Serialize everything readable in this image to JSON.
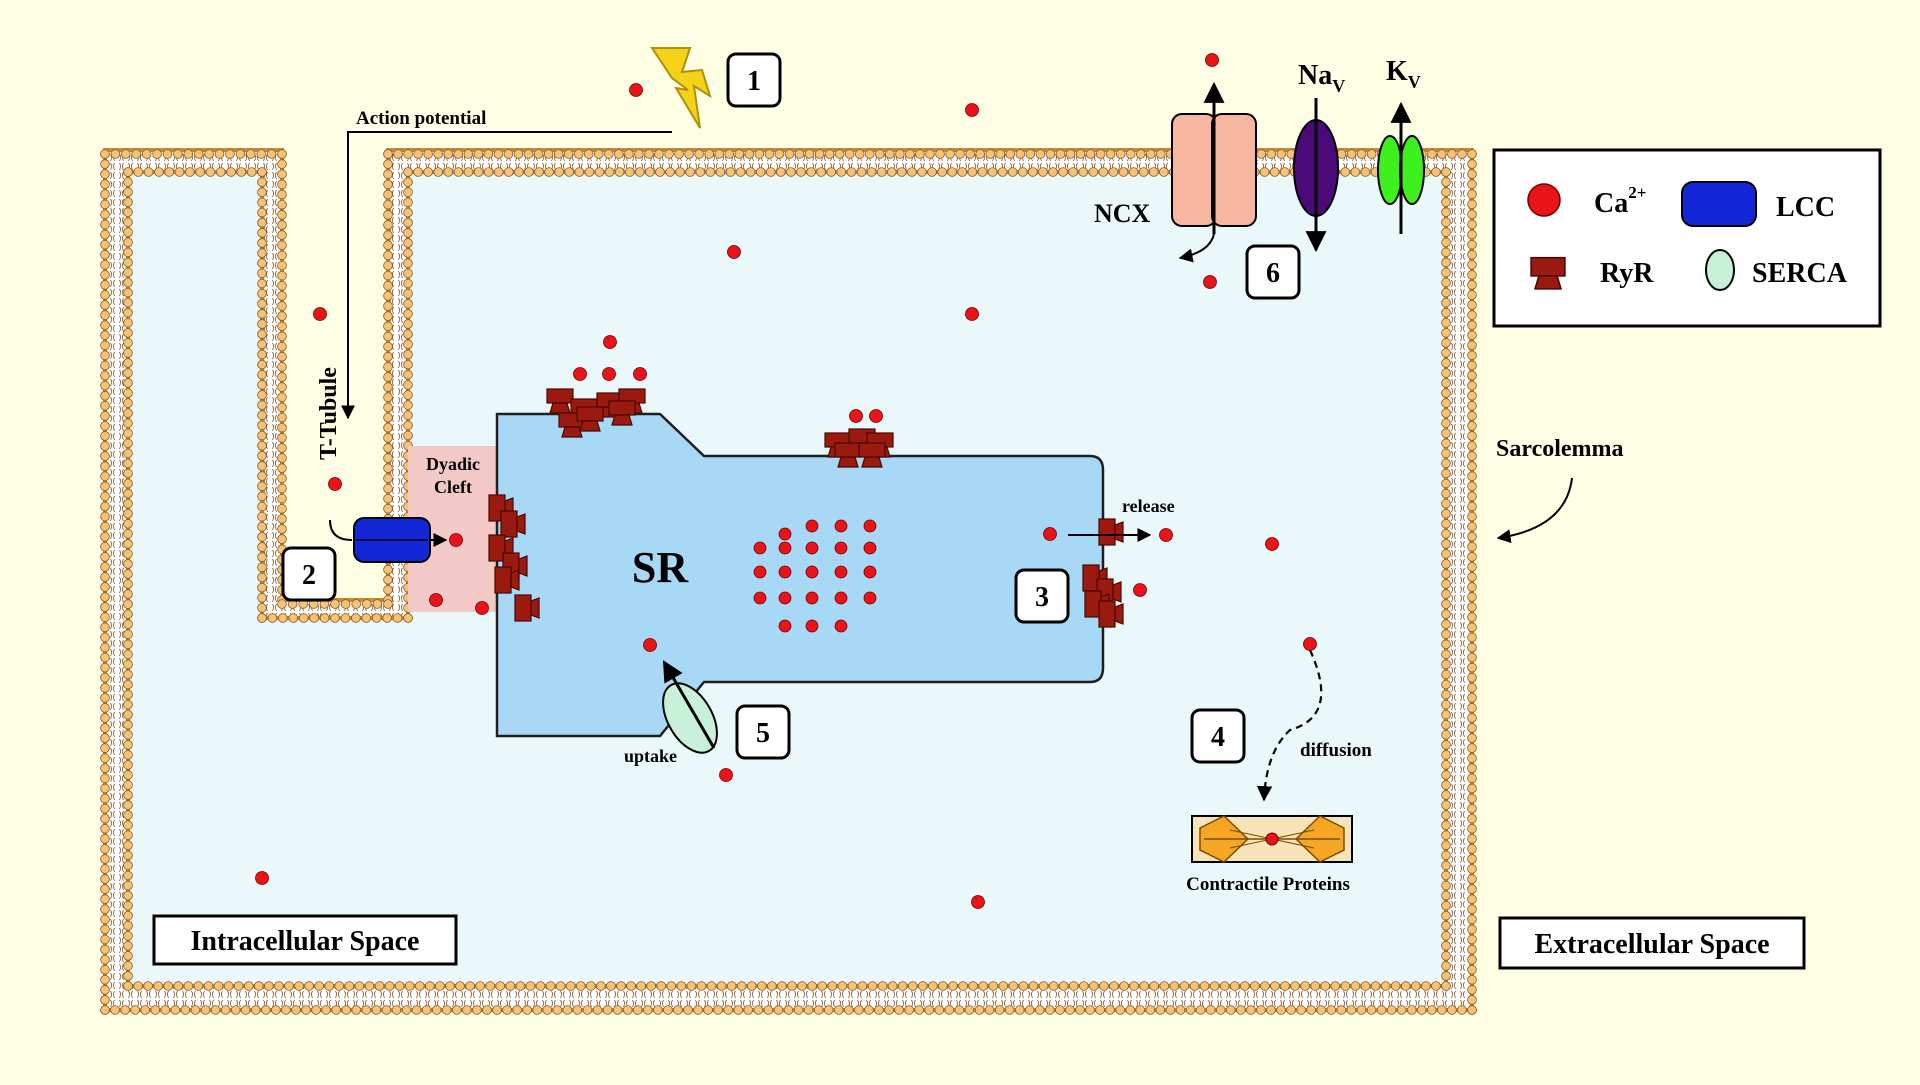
{
  "colors": {
    "background": "#FFFFE6",
    "intracellular": "#EAF8FA",
    "sr": "#A7D8F5",
    "calcium": "#E8141A",
    "ryr": "#9A1A10",
    "lcc": "#1326D8",
    "serca": "#C9F0D8",
    "ncx": "#F7B6A0",
    "nav": "#4B0A7A",
    "kv": "#3EF01E",
    "lightning": "#F2D31A",
    "dyadic_cleft": "#F2C9C7",
    "lipid_head": "#F5C27A"
  },
  "labels": {
    "action_potential": "Action potential",
    "t_tubule": "T-Tubule",
    "dyadic_cleft_line1": "Dyadic",
    "dyadic_cleft_line2": "Cleft",
    "sr": "SR",
    "release": "release",
    "uptake": "uptake",
    "diffusion": "diffusion",
    "contractile_proteins": "Contractile Proteins",
    "ncx": "NCX",
    "nav_base": "Na",
    "nav_sub": "V",
    "kv_base": "K",
    "kv_sub": "V",
    "sarcolemma": "Sarcolemma",
    "intracellular_space": "Intracellular Space",
    "extracellular_space": "Extracellular Space"
  },
  "steps": [
    "1",
    "2",
    "3",
    "4",
    "5",
    "6"
  ],
  "legend": {
    "ca_base": "Ca",
    "ca_sup": "2+",
    "lcc": "LCC",
    "ryr": "RyR",
    "serca": "SERCA"
  },
  "icons": [
    "lightning-icon",
    "calcium-ion-icon",
    "ryr-icon",
    "lcc-icon",
    "serca-icon",
    "ncx-icon",
    "nav-channel-icon",
    "kv-channel-icon",
    "sarcomere-icon"
  ]
}
